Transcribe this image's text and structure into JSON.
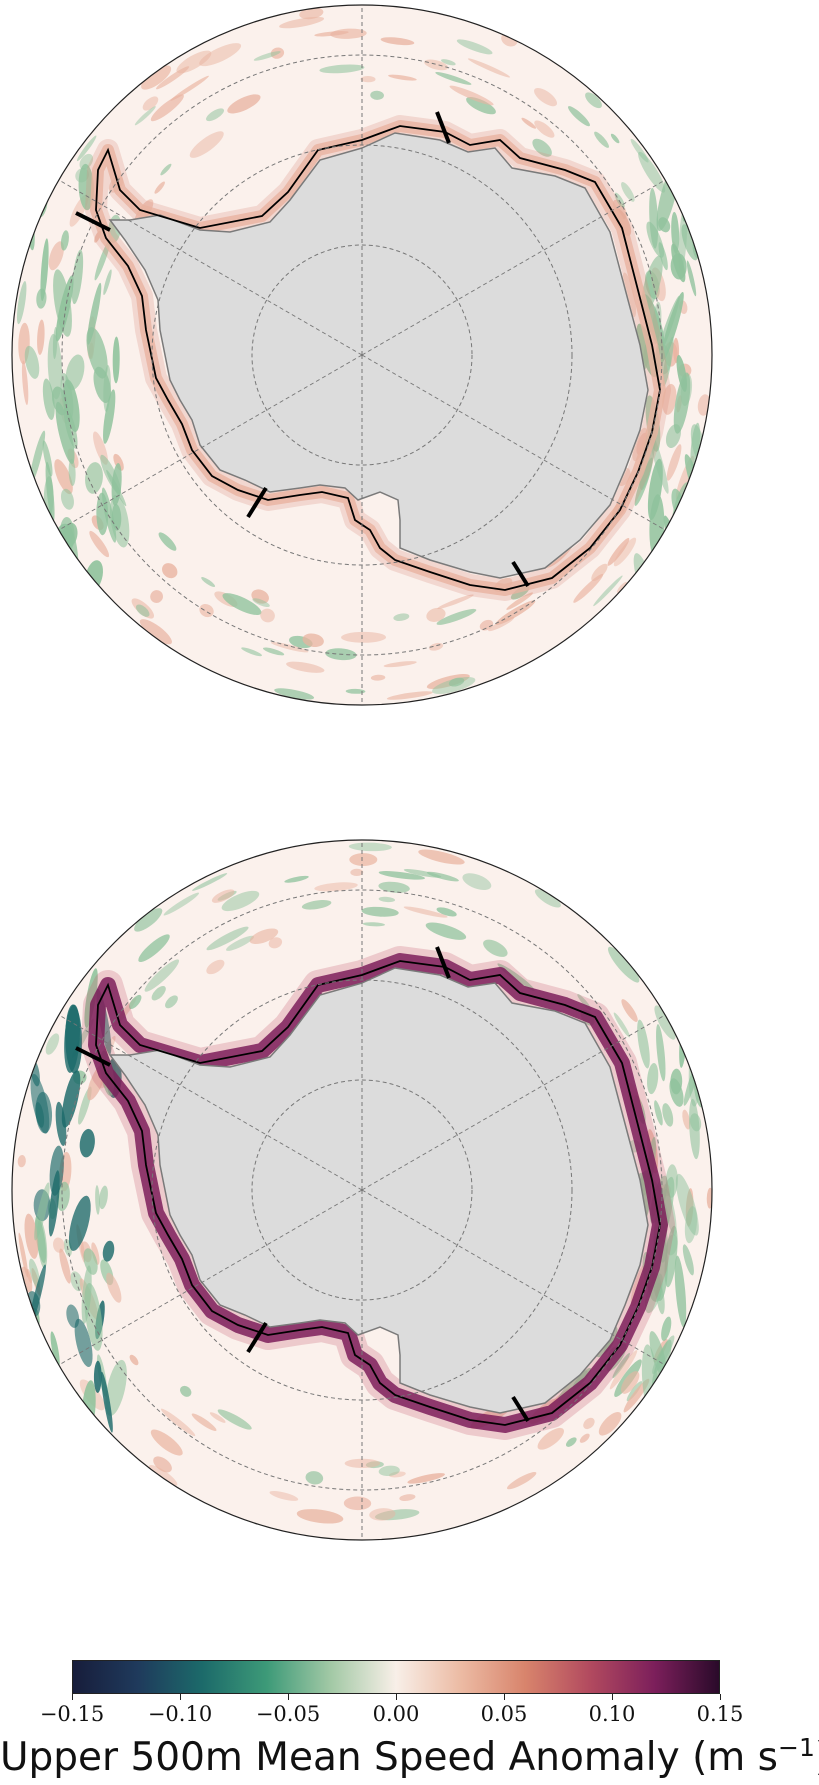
{
  "maps": [
    {
      "id": "top",
      "description": "polar-stereographic-speed-anomaly-map"
    },
    {
      "id": "bottom",
      "description": "polar-stereographic-speed-anomaly-map"
    }
  ],
  "colors": {
    "land": "#dcdcdc",
    "ocean_neutral": "#fbf1ec",
    "negative_strong": "#1c6a6a",
    "negative_weak": "#8fc29c",
    "positive_weak": "#e9b3a0",
    "positive_strong": "#7c1f5b",
    "grid": "#777777",
    "contour": "#000000"
  },
  "colorbar": {
    "ticks": [
      "−0.15",
      "−0.10",
      "−0.05",
      "0.00",
      "0.05",
      "0.10",
      "0.15"
    ],
    "tick_values": [
      -0.15,
      -0.1,
      -0.05,
      0.0,
      0.05,
      0.1,
      0.15
    ],
    "range": [
      -0.15,
      0.15
    ],
    "colormap": "diverging-teal-white-maroon",
    "label_text": "Upper 500m Mean Speed Anomaly (m s",
    "label_exponent": "−1",
    "label_close": ")"
  }
}
